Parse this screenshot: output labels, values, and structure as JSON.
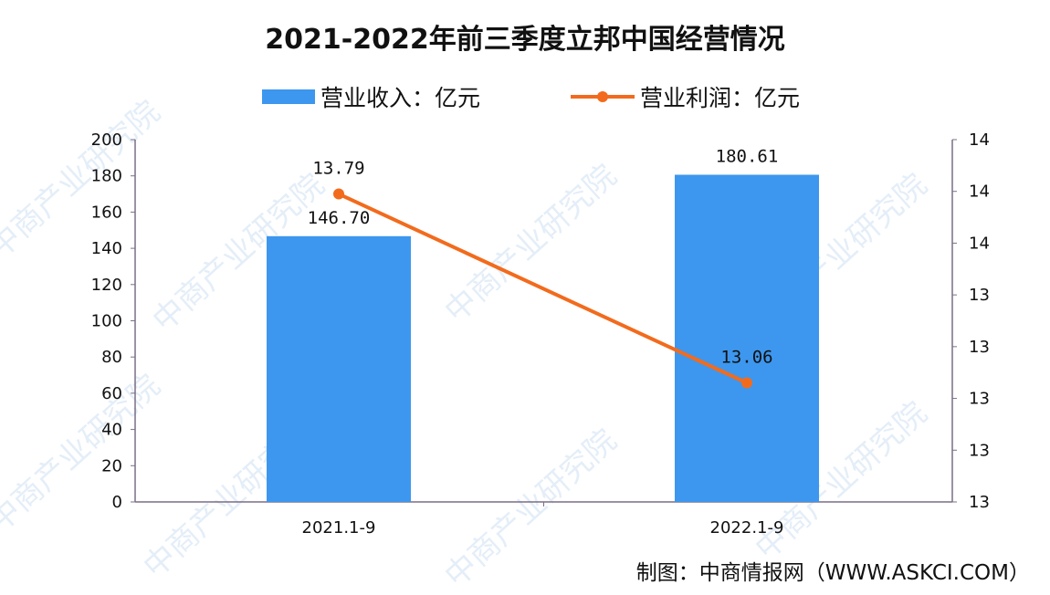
{
  "title": "2021-2022年前三季度立邦中国经营情况",
  "legend": {
    "revenue": "营业收入：亿元",
    "profit": "营业利润：亿元"
  },
  "footer": "制图：中商情报网（WWW.ASKCI.COM）",
  "watermark": "中商产业研究院",
  "colors": {
    "bar": "#3d97ee",
    "line": "#f26b1d"
  },
  "chart_data": {
    "type": "bar+line",
    "title": "2021-2022年前三季度立邦中国经营情况",
    "categories": [
      "2021.1-9",
      "2022.1-9"
    ],
    "series": [
      {
        "name": "营业收入：亿元",
        "type": "bar",
        "axis": "left",
        "values": [
          146.7,
          180.61
        ],
        "labels": [
          "146.70",
          "180.61"
        ]
      },
      {
        "name": "营业利润：亿元",
        "type": "line",
        "axis": "right",
        "values": [
          13.79,
          13.06
        ],
        "labels": [
          "13.79",
          "13.06"
        ]
      }
    ],
    "left_axis": {
      "ylim": [
        0,
        200
      ],
      "ticks": [
        "0",
        "20",
        "40",
        "60",
        "80",
        "100",
        "120",
        "140",
        "160",
        "180",
        "200"
      ]
    },
    "right_axis": {
      "ylim": [
        12.6,
        14.0
      ],
      "tick_labels_top_to_bottom": [
        "14",
        "14",
        "14",
        "13",
        "13",
        "13",
        "13",
        "13"
      ]
    },
    "legend_position": "top",
    "grid": false
  }
}
